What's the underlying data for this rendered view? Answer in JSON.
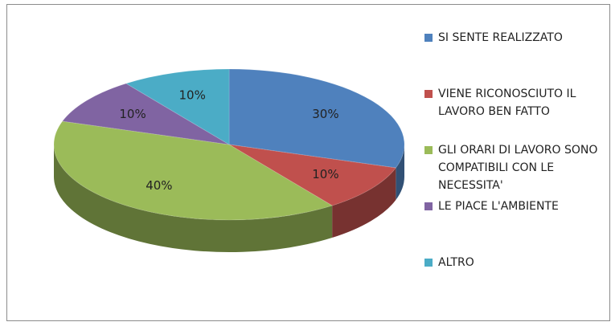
{
  "chart_data": {
    "type": "pie",
    "categories": [
      "SI SENTE REALIZZATO",
      "VIENE RICONOSCIUTO IL LAVORO BEN FATTO",
      "GLI ORARI DI LAVORO SONO COMPATIBILI CON LE NECESSITA'",
      "LE PIACE L'AMBIENTE",
      "ALTRO"
    ],
    "values": [
      30,
      10,
      40,
      10,
      10
    ],
    "value_labels": [
      "30%",
      "10%",
      "40%",
      "10%",
      "10%"
    ],
    "colors": [
      "#4f81bd",
      "#c0504d",
      "#9bbb59",
      "#8064a2",
      "#4bacc6"
    ],
    "three_d": true
  }
}
